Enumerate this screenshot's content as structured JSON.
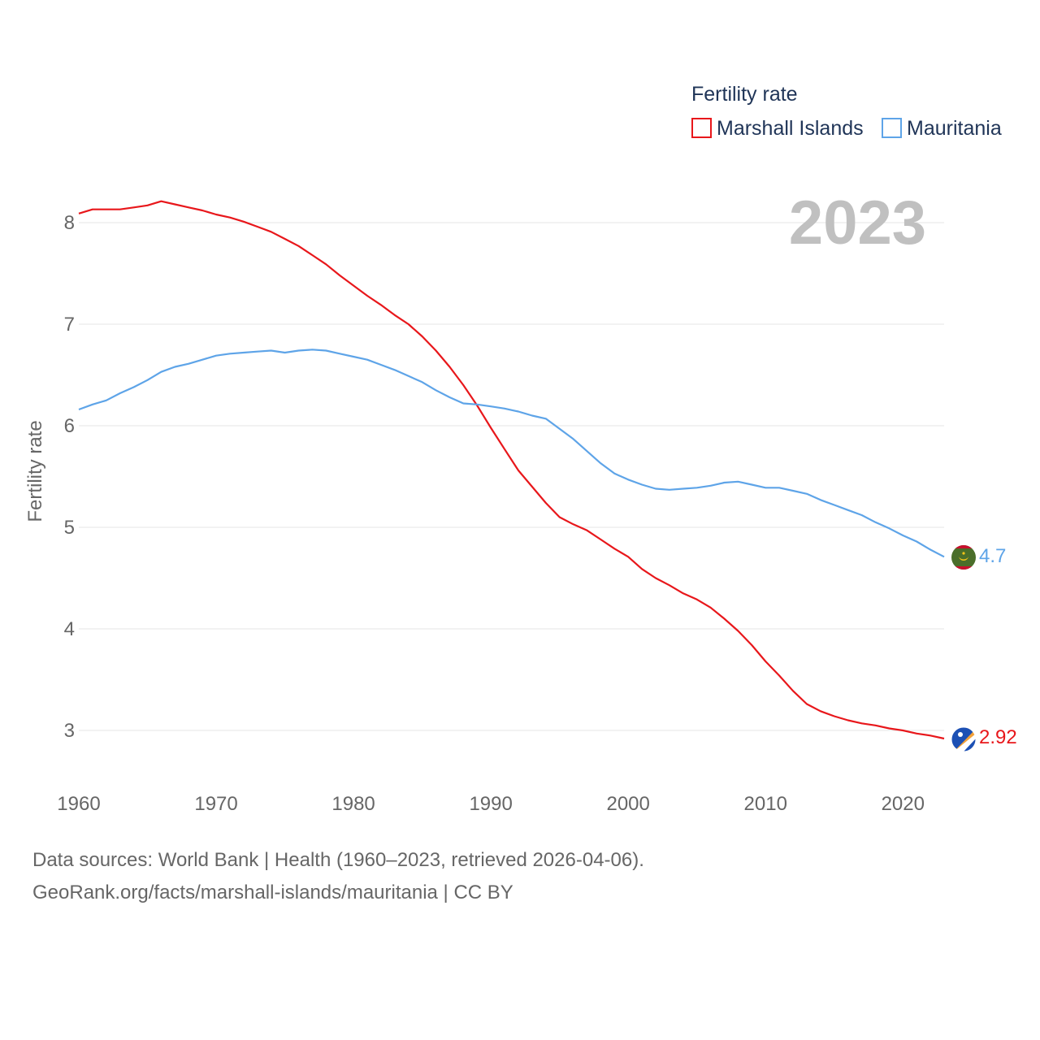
{
  "chart_data": {
    "type": "line",
    "title": "Fertility rate",
    "ylabel": "Fertility rate",
    "xlabel": "",
    "xlim": [
      1960,
      2023
    ],
    "ylim": [
      2.5,
      8.25
    ],
    "x_ticks": [
      1960,
      1970,
      1980,
      1990,
      2000,
      2010,
      2020
    ],
    "y_ticks": [
      3,
      4,
      5,
      6,
      7,
      8
    ],
    "grid": true,
    "legend_position": "top-right",
    "year_label": "2023",
    "x": [
      1960,
      1961,
      1962,
      1963,
      1964,
      1965,
      1966,
      1967,
      1968,
      1969,
      1970,
      1971,
      1972,
      1973,
      1974,
      1975,
      1976,
      1977,
      1978,
      1979,
      1980,
      1981,
      1982,
      1983,
      1984,
      1985,
      1986,
      1987,
      1988,
      1989,
      1990,
      1991,
      1992,
      1993,
      1994,
      1995,
      1996,
      1997,
      1998,
      1999,
      2000,
      2001,
      2002,
      2003,
      2004,
      2005,
      2006,
      2007,
      2008,
      2009,
      2010,
      2011,
      2012,
      2013,
      2014,
      2015,
      2016,
      2017,
      2018,
      2019,
      2020,
      2021,
      2022,
      2023
    ],
    "series": [
      {
        "name": "Marshall Islands",
        "color": "#e8171b",
        "end_label": "2.92",
        "flag": "marshall-islands-flag",
        "values": [
          8.09,
          8.13,
          8.13,
          8.13,
          8.15,
          8.17,
          8.21,
          8.18,
          8.15,
          8.12,
          8.08,
          8.05,
          8.01,
          7.96,
          7.91,
          7.84,
          7.77,
          7.68,
          7.59,
          7.48,
          7.38,
          7.28,
          7.19,
          7.09,
          7.0,
          6.88,
          6.74,
          6.58,
          6.4,
          6.2,
          5.98,
          5.77,
          5.56,
          5.4,
          5.24,
          5.1,
          5.03,
          4.97,
          4.88,
          4.79,
          4.71,
          4.59,
          4.5,
          4.43,
          4.35,
          4.29,
          4.21,
          4.1,
          3.98,
          3.84,
          3.68,
          3.54,
          3.39,
          3.26,
          3.19,
          3.14,
          3.1,
          3.07,
          3.05,
          3.02,
          3.0,
          2.97,
          2.95,
          2.92
        ]
      },
      {
        "name": "Mauritania",
        "color": "#5ea4e8",
        "end_label": "4.7",
        "flag": "mauritania-flag",
        "values": [
          6.16,
          6.21,
          6.25,
          6.32,
          6.38,
          6.45,
          6.53,
          6.58,
          6.61,
          6.65,
          6.69,
          6.71,
          6.72,
          6.73,
          6.74,
          6.72,
          6.74,
          6.75,
          6.74,
          6.71,
          6.68,
          6.65,
          6.6,
          6.55,
          6.49,
          6.43,
          6.35,
          6.28,
          6.22,
          6.21,
          6.19,
          6.17,
          6.14,
          6.1,
          6.07,
          5.97,
          5.87,
          5.75,
          5.63,
          5.53,
          5.47,
          5.42,
          5.38,
          5.37,
          5.38,
          5.39,
          5.41,
          5.44,
          5.45,
          5.42,
          5.39,
          5.39,
          5.36,
          5.33,
          5.27,
          5.22,
          5.17,
          5.12,
          5.05,
          4.99,
          4.92,
          4.86,
          4.78,
          4.71
        ]
      }
    ]
  },
  "footer": {
    "sources": "Data sources: World Bank | Health (1960–2023, retrieved 2026-04-06).",
    "credit": "GeoRank.org/facts/marshall-islands/mauritania | CC BY"
  }
}
